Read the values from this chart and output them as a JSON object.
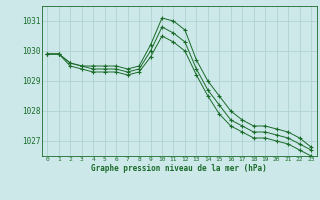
{
  "title": "Graphe pression niveau de la mer (hPa)",
  "bg_color": "#cce8e8",
  "grid_color": "#aacece",
  "line_color": "#1a6b2a",
  "x_labels": [
    "0",
    "1",
    "2",
    "3",
    "4",
    "5",
    "6",
    "7",
    "8",
    "9",
    "10",
    "11",
    "12",
    "13",
    "14",
    "15",
    "16",
    "17",
    "18",
    "19",
    "20",
    "21",
    "22",
    "23"
  ],
  "ylim": [
    1026.5,
    1031.5
  ],
  "yticks": [
    1027,
    1028,
    1029,
    1030,
    1031
  ],
  "series1": [
    1029.9,
    1029.9,
    1029.6,
    1029.5,
    1029.5,
    1029.5,
    1029.5,
    1029.4,
    1029.5,
    1030.2,
    1031.1,
    1031.0,
    1030.7,
    1029.7,
    1029.0,
    1028.5,
    1028.0,
    1027.7,
    1027.5,
    1027.5,
    1027.4,
    1027.3,
    1027.1,
    1026.8
  ],
  "series2": [
    1029.9,
    1029.9,
    1029.6,
    1029.5,
    1029.4,
    1029.4,
    1029.4,
    1029.3,
    1029.4,
    1030.0,
    1030.8,
    1030.6,
    1030.3,
    1029.4,
    1028.7,
    1028.2,
    1027.7,
    1027.5,
    1027.3,
    1027.3,
    1027.2,
    1027.1,
    1026.9,
    1026.7
  ],
  "series3": [
    1029.9,
    1029.9,
    1029.5,
    1029.4,
    1029.3,
    1029.3,
    1029.3,
    1029.2,
    1029.3,
    1029.8,
    1030.5,
    1030.3,
    1030.0,
    1029.2,
    1028.5,
    1027.9,
    1027.5,
    1027.3,
    1027.1,
    1027.1,
    1027.0,
    1026.9,
    1026.7,
    1026.5
  ]
}
